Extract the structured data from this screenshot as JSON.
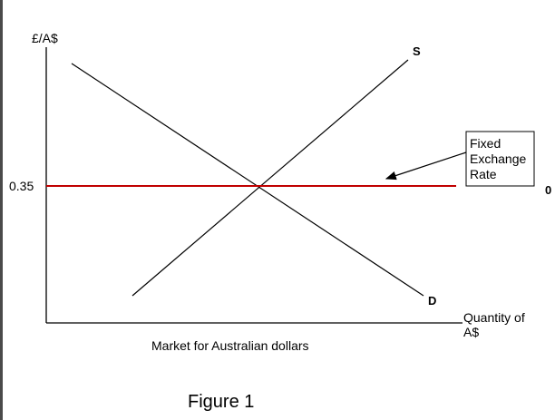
{
  "y_axis_label": "£/A$",
  "x_axis_label_line1": "Quantity of",
  "x_axis_label_line2": "A$",
  "price_tick_label": "0.35",
  "supply_label": "S",
  "demand_label": "D",
  "right_edge_label": "0",
  "fixed_rate_box": {
    "line1": "Fixed",
    "line2": "Exchange",
    "line3": "Rate"
  },
  "market_caption": "Market for Australian dollars",
  "figure_caption": "Figure 1",
  "colors": {
    "fixed_rate_line": "#c00000",
    "curves": "#000000",
    "axes": "#000000"
  }
}
